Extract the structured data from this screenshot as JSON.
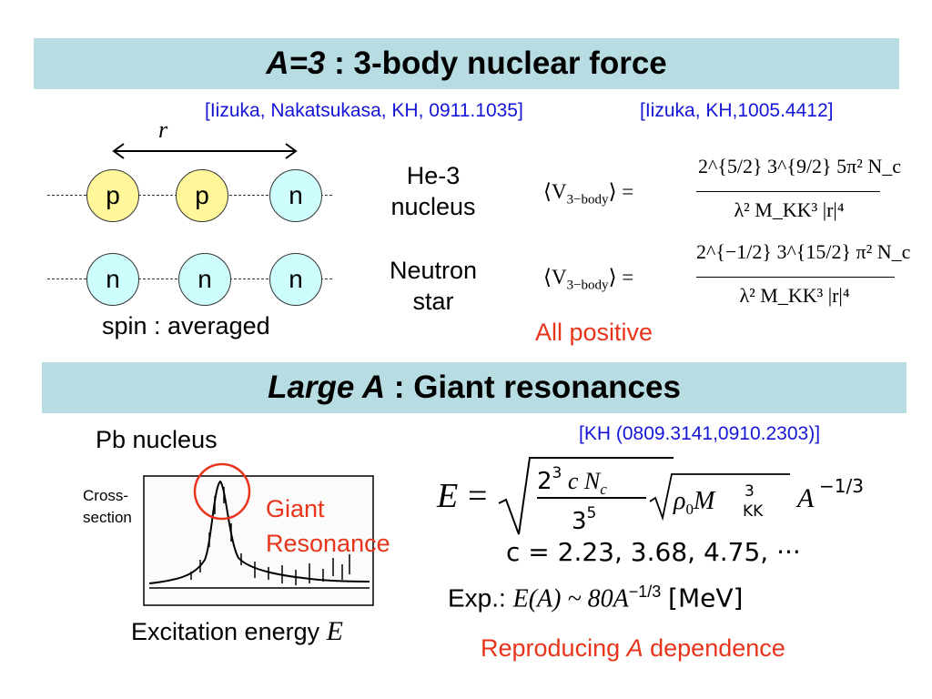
{
  "section1": {
    "title_italic": "A=3",
    "title_rest": " : 3-body nuclear force",
    "ref1": "[Iizuka, Nakatsukasa, KH, 0911.1035]",
    "ref2": "[Iizuka, KH,1005.4412]",
    "r_label": "r",
    "row1": [
      "p",
      "p",
      "n"
    ],
    "row2": [
      "n",
      "n",
      "n"
    ],
    "spin_label": "spin : averaged",
    "he3_line1": "He-3",
    "he3_line2": "nucleus",
    "ns_line1": "Neutron",
    "ns_line2": "star",
    "all_positive": "All positive",
    "formula_lhs": "⟨V",
    "formula_sub": "3−body",
    "formula_eq": "⟩ =",
    "f1_num": "2^{5/2} 3^{9/2} 5π² N_c",
    "f2_num": "2^{−1/2} 3^{15/2} π² N_c",
    "f_den": "λ² M_KK³ |r|⁴"
  },
  "section2": {
    "title_italic": "Large A",
    "title_rest": " : Giant resonances",
    "ref": "[KH (0809.3141,0910.2303)]",
    "pb_label": "Pb nucleus",
    "cross1": "Cross-",
    "cross2": "section",
    "giant1": "Giant",
    "giant2": "Resonance",
    "excitation": "Excitation energy",
    "e_symbol": "E",
    "c_values": "c = 2.23, 3.68, 4.75, ···",
    "exp_label": "Exp.:",
    "exp_formula": "E(A) ~ 80A",
    "exp_power": "−1/3",
    "exp_unit": "[MeV]",
    "repro_a": "Reproducing ",
    "repro_b": "A",
    "repro_c": " dependence"
  },
  "colors": {
    "banner": "#b7dde3",
    "proton": "#fff79a",
    "neutron": "#cdfdfd",
    "ref": "#1515d8",
    "accent": "#e8341a"
  }
}
